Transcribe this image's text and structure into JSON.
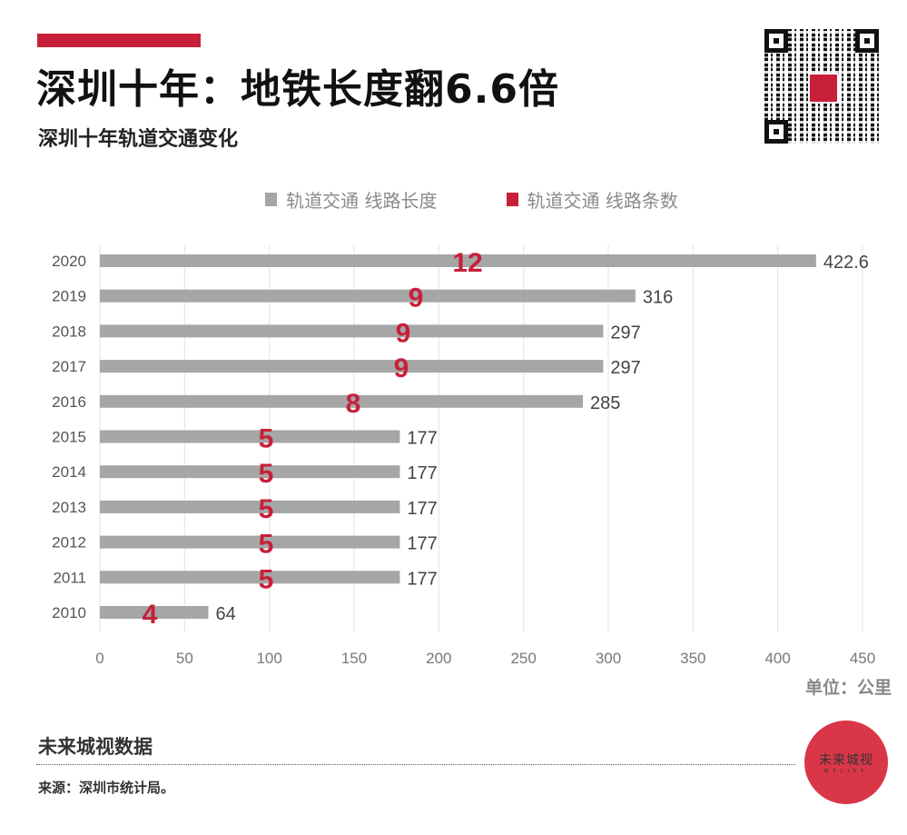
{
  "header": {
    "title": "深圳十年：地铁长度翻6.6倍",
    "subtitle": "深圳十年轨道交通变化"
  },
  "footer": {
    "brand": "未来城视数据",
    "source": "来源：深圳市统计局。",
    "logo_text": "未来城视",
    "logo_sub": "WELIKE"
  },
  "colors": {
    "length": "#a6a6a6",
    "lines": "#c8203a",
    "accent": "#c8203a"
  },
  "chart_data": {
    "type": "bar",
    "orientation": "horizontal",
    "title": "深圳十年轨道交通变化",
    "unit_label": "单位：公里",
    "categories": [
      "2020",
      "2019",
      "2018",
      "2017",
      "2016",
      "2015",
      "2014",
      "2013",
      "2012",
      "2011",
      "2010"
    ],
    "series": [
      {
        "name": "轨道交通 线路长度",
        "values": [
          422.6,
          316,
          297,
          297,
          285,
          177,
          177,
          177,
          177,
          177,
          64
        ],
        "labels": [
          "422.6",
          "316",
          "297",
          "297",
          "285",
          "177",
          "177",
          "177",
          "177",
          "177",
          "64"
        ]
      },
      {
        "name": "轨道交通 线路条数",
        "values": [
          12,
          9,
          9,
          9,
          8,
          5,
          5,
          5,
          5,
          5,
          4
        ],
        "labels": [
          "12",
          "9",
          "9",
          "9",
          "8",
          "5",
          "5",
          "5",
          "5",
          "5",
          "4"
        ]
      }
    ],
    "xlim": [
      0,
      450
    ],
    "xticks": [
      "0",
      "50",
      "100",
      "150",
      "200",
      "250",
      "300",
      "350",
      "400",
      "450"
    ],
    "grid": true,
    "legend": "top-center"
  }
}
